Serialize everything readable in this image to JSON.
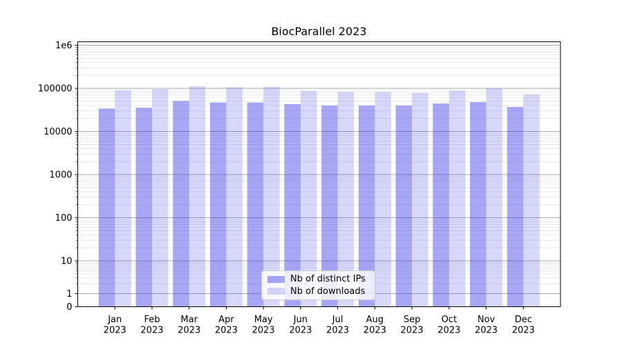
{
  "chart_data": {
    "type": "bar",
    "title": "BiocParallel 2023",
    "categories": [
      "Jan",
      "Feb",
      "Mar",
      "Apr",
      "May",
      "Jun",
      "Jul",
      "Aug",
      "Sep",
      "Oct",
      "Nov",
      "Dec"
    ],
    "x_year": "2023",
    "xlabel": "",
    "ylabel": "",
    "y_scale": "symlog",
    "ylim": [
      0,
      1000000
    ],
    "grid": "both",
    "legend_position": "lower center",
    "y_ticks": [
      {
        "value": 0,
        "label": "0"
      },
      {
        "value": 1,
        "label": "1"
      },
      {
        "value": 10,
        "label": "10"
      },
      {
        "value": 100,
        "label": "100"
      },
      {
        "value": 1000,
        "label": "1000"
      },
      {
        "value": 10000,
        "label": "10000"
      },
      {
        "value": 100000,
        "label": "100000"
      },
      {
        "value": 1000000,
        "label": "1e6"
      }
    ],
    "series": [
      {
        "name": "Nb of distinct IPs",
        "color": "rgba(60,60,235,0.45)",
        "values": [
          34000,
          35500,
          51000,
          47000,
          47000,
          43000,
          40000,
          40000,
          40000,
          44500,
          48000,
          37000
        ]
      },
      {
        "name": "Nb of downloads",
        "color": "rgba(60,60,235,0.2)",
        "values": [
          90000,
          96000,
          112000,
          106000,
          109000,
          87000,
          83000,
          83000,
          79000,
          89000,
          100000,
          72000
        ]
      }
    ]
  }
}
